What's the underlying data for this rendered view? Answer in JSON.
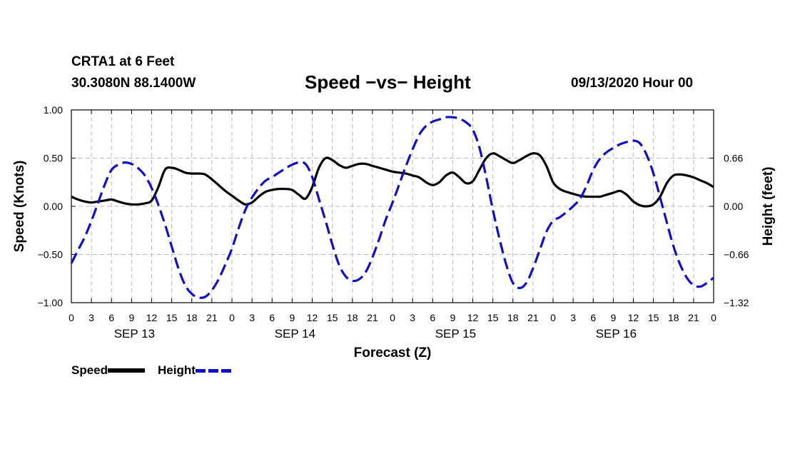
{
  "header": {
    "station": "CRTA1 at 6 Feet",
    "coords": "30.3080N 88.1400W",
    "title": "Speed −vs− Height",
    "timestamp": "09/13/2020 Hour 00"
  },
  "legend": {
    "speed_label": "Speed",
    "height_label": "Height"
  },
  "colors": {
    "speed": "#000000",
    "height": "#1010c8",
    "grid": "#bbbbbb"
  },
  "chart_data": {
    "type": "line",
    "title": "Speed −vs− Height",
    "xlabel": "Forecast (Z)",
    "ylabel_left": "Speed (Knots)",
    "ylabel_right": "Height (feet)",
    "x_range_hours": [
      0,
      96
    ],
    "ylim_left": [
      -1.0,
      1.0
    ],
    "ylim_right": [
      -1.32,
      1.32
    ],
    "left_ticks": [
      {
        "value": 1.0,
        "label": "1.00"
      },
      {
        "value": 0.5,
        "label": "0.50"
      },
      {
        "value": 0.0,
        "label": "0.00"
      },
      {
        "value": -0.5,
        "label": "−0.50"
      },
      {
        "value": -1.0,
        "label": "−1.00"
      }
    ],
    "right_ticks": [
      {
        "value": 0.66,
        "label": "0.66"
      },
      {
        "value": 0.0,
        "label": "0.00"
      },
      {
        "value": -0.66,
        "label": "−0.66"
      },
      {
        "value": -1.32,
        "label": "−1.32"
      }
    ],
    "x_ticks": [
      "0",
      "3",
      "6",
      "9",
      "12",
      "15",
      "18",
      "21",
      "0",
      "3",
      "6",
      "9",
      "12",
      "15",
      "18",
      "21",
      "0",
      "3",
      "6",
      "9",
      "12",
      "15",
      "18",
      "21",
      "0",
      "3",
      "6",
      "9",
      "12",
      "15",
      "18",
      "21",
      "0"
    ],
    "day_labels": [
      {
        "label": "SEP 13",
        "hour": 9
      },
      {
        "label": "SEP 14",
        "hour": 33
      },
      {
        "label": "SEP 15",
        "hour": 57
      },
      {
        "label": "SEP 16",
        "hour": 81
      }
    ],
    "series": [
      {
        "name": "Speed",
        "axis": "left",
        "style": "solid",
        "x": [
          0,
          1,
          2,
          3,
          4,
          5,
          6,
          7,
          8,
          9,
          10,
          11,
          12,
          13,
          14,
          15,
          16,
          17,
          18,
          19,
          20,
          21,
          22,
          23,
          24,
          25,
          26,
          27,
          28,
          29,
          30,
          31,
          32,
          33,
          34,
          35,
          36,
          37,
          38,
          39,
          40,
          41,
          42,
          43,
          44,
          45,
          46,
          47,
          48,
          49,
          50,
          51,
          52,
          53,
          54,
          55,
          56,
          57,
          58,
          59,
          60,
          61,
          62,
          63,
          64,
          65,
          66,
          67,
          68,
          69,
          70,
          71,
          72,
          73,
          74,
          75,
          76,
          77,
          78,
          79,
          80,
          81,
          82,
          83,
          84,
          85,
          86,
          87,
          88,
          89,
          90,
          91,
          92,
          93,
          94,
          95,
          96
        ],
        "y": [
          0.1,
          0.07,
          0.05,
          0.04,
          0.05,
          0.06,
          0.07,
          0.05,
          0.03,
          0.02,
          0.02,
          0.03,
          0.06,
          0.2,
          0.38,
          0.4,
          0.38,
          0.35,
          0.34,
          0.34,
          0.33,
          0.28,
          0.22,
          0.16,
          0.11,
          0.06,
          0.02,
          0.04,
          0.1,
          0.15,
          0.17,
          0.18,
          0.18,
          0.17,
          0.12,
          0.08,
          0.2,
          0.4,
          0.5,
          0.48,
          0.43,
          0.4,
          0.42,
          0.44,
          0.44,
          0.42,
          0.4,
          0.38,
          0.36,
          0.35,
          0.34,
          0.32,
          0.3,
          0.25,
          0.22,
          0.25,
          0.32,
          0.35,
          0.3,
          0.24,
          0.26,
          0.38,
          0.5,
          0.55,
          0.52,
          0.48,
          0.45,
          0.48,
          0.52,
          0.55,
          0.53,
          0.42,
          0.25,
          0.18,
          0.15,
          0.13,
          0.11,
          0.1,
          0.1,
          0.1,
          0.12,
          0.14,
          0.16,
          0.12,
          0.05,
          0.01,
          0.0,
          0.02,
          0.1,
          0.24,
          0.32,
          0.33,
          0.32,
          0.3,
          0.27,
          0.24,
          0.2
        ]
      },
      {
        "name": "Height",
        "axis": "right",
        "style": "dashed",
        "x": [
          0,
          1,
          2,
          3,
          4,
          5,
          6,
          7,
          8,
          9,
          10,
          11,
          12,
          13,
          14,
          15,
          16,
          17,
          18,
          19,
          20,
          21,
          22,
          23,
          24,
          25,
          26,
          27,
          28,
          29,
          30,
          31,
          32,
          33,
          34,
          35,
          36,
          37,
          38,
          39,
          40,
          41,
          42,
          43,
          44,
          45,
          46,
          47,
          48,
          49,
          50,
          51,
          52,
          53,
          54,
          55,
          56,
          57,
          58,
          59,
          60,
          61,
          62,
          63,
          64,
          65,
          66,
          67,
          68,
          69,
          70,
          71,
          72,
          73,
          74,
          75,
          76,
          77,
          78,
          79,
          80,
          81,
          82,
          83,
          84,
          85,
          86,
          87,
          88,
          89,
          90,
          91,
          92,
          93,
          94,
          95,
          96
        ],
        "y": [
          -0.78,
          -0.6,
          -0.42,
          -0.2,
          0.05,
          0.3,
          0.5,
          0.57,
          0.6,
          0.58,
          0.52,
          0.42,
          0.25,
          0.02,
          -0.25,
          -0.55,
          -0.85,
          -1.08,
          -1.2,
          -1.25,
          -1.24,
          -1.15,
          -1.0,
          -0.8,
          -0.58,
          -0.3,
          -0.05,
          0.12,
          0.25,
          0.35,
          0.4,
          0.46,
          0.52,
          0.57,
          0.6,
          0.58,
          0.4,
          0.1,
          -0.2,
          -0.52,
          -0.8,
          -0.96,
          -1.02,
          -1.0,
          -0.9,
          -0.7,
          -0.45,
          -0.18,
          0.05,
          0.3,
          0.55,
          0.78,
          0.98,
          1.1,
          1.16,
          1.19,
          1.22,
          1.22,
          1.2,
          1.15,
          1.05,
          0.8,
          0.4,
          -0.05,
          -0.45,
          -0.8,
          -1.05,
          -1.12,
          -1.05,
          -0.85,
          -0.6,
          -0.35,
          -0.2,
          -0.15,
          -0.08,
          0.0,
          0.1,
          0.28,
          0.5,
          0.65,
          0.74,
          0.8,
          0.85,
          0.88,
          0.9,
          0.86,
          0.7,
          0.45,
          0.12,
          -0.22,
          -0.55,
          -0.8,
          -0.98,
          -1.08,
          -1.1,
          -1.05,
          -0.98
        ]
      }
    ]
  }
}
